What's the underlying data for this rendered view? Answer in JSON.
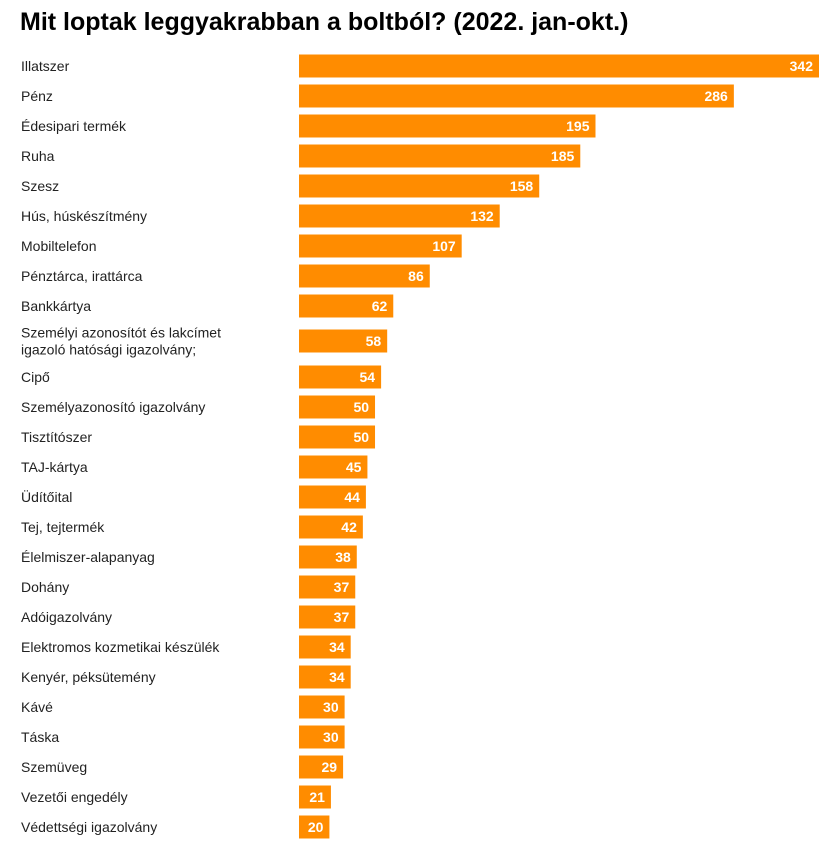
{
  "chart_data": {
    "type": "bar",
    "orientation": "horizontal",
    "title": "Mit loptak leggyakrabban a boltból? (2022. jan-okt.)",
    "bar_color": "#ff8c00",
    "categories": [
      "Illatszer",
      "Pénz",
      "Édesipari termék",
      "Ruha",
      "Szesz",
      "Hús, húskészítmény",
      "Mobiltelefon",
      "Pénztárca, irattárca",
      "Bankkártya",
      "Személyi azonosítót és lakcímet igazoló hatósági igazolvány;",
      "Cipő",
      "Személyazonosító igazolvány",
      "Tisztítószer",
      "TAJ-kártya",
      "Üdítőital",
      "Tej, tejtermék",
      "Élelmiszer-alapanyag",
      "Dohány",
      "Adóigazolvány",
      "Elektromos kozmetikai készülék",
      "Kenyér, péksütemény",
      "Kávé",
      "Táska",
      "Szemüveg",
      "Vezetői engedély",
      "Védettségi igazolvány"
    ],
    "values": [
      342,
      286,
      195,
      185,
      158,
      132,
      107,
      86,
      62,
      58,
      54,
      50,
      50,
      45,
      44,
      42,
      38,
      37,
      37,
      34,
      34,
      30,
      30,
      29,
      21,
      20
    ],
    "xlim": [
      0,
      342
    ],
    "grid": false,
    "legend": "none"
  }
}
